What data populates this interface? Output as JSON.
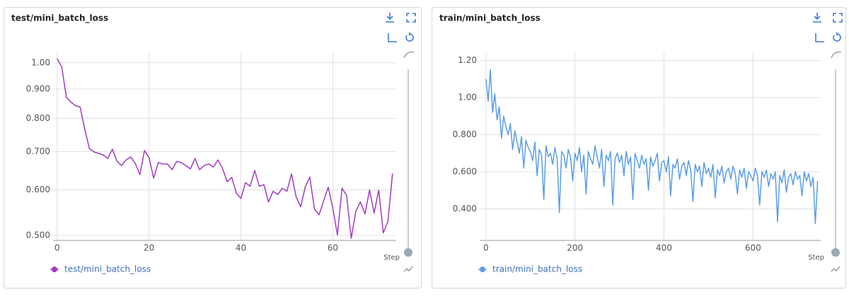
{
  "chart_data": [
    {
      "type": "line",
      "title": "test/mini_batch_loss",
      "x_label": "Step",
      "log_y": true,
      "grid": true,
      "xlim": [
        -0.9,
        73.8
      ],
      "xticks": [
        0,
        20,
        40,
        60
      ],
      "ylim": [
        0.49,
        1.04
      ],
      "yticks": [
        {
          "value": 0.5,
          "label": "0.500"
        },
        {
          "value": 0.6,
          "label": "0.600"
        },
        {
          "value": 0.7,
          "label": "0.700"
        },
        {
          "value": 0.8,
          "label": "0.800"
        },
        {
          "value": 0.9,
          "label": "0.900"
        },
        {
          "value": 1,
          "label": "1.00"
        }
      ],
      "x": [
        0,
        1,
        2,
        3,
        4,
        5,
        6,
        7,
        8,
        9,
        10,
        11,
        12,
        13,
        14,
        15,
        16,
        17,
        18,
        19,
        20,
        21,
        22,
        23,
        24,
        25,
        26,
        27,
        28,
        29,
        30,
        31,
        32,
        33,
        34,
        35,
        36,
        37,
        38,
        39,
        40,
        41,
        42,
        43,
        44,
        45,
        46,
        47,
        48,
        49,
        50,
        51,
        52,
        53,
        54,
        55,
        56,
        57,
        58,
        59,
        60,
        61,
        62,
        63,
        64,
        65,
        66,
        67,
        68,
        69,
        70,
        71,
        72,
        73
      ],
      "series": [
        {
          "name": "test/mini_batch_loss",
          "color": "#a03cc0",
          "values": [
            1.017,
            0.983,
            0.871,
            0.854,
            0.842,
            0.837,
            0.766,
            0.709,
            0.699,
            0.695,
            0.691,
            0.681,
            0.707,
            0.674,
            0.662,
            0.677,
            0.685,
            0.668,
            0.638,
            0.703,
            0.683,
            0.629,
            0.67,
            0.666,
            0.666,
            0.651,
            0.673,
            0.67,
            0.662,
            0.653,
            0.681,
            0.651,
            0.662,
            0.666,
            0.658,
            0.677,
            0.654,
            0.62,
            0.631,
            0.592,
            0.58,
            0.618,
            0.609,
            0.649,
            0.609,
            0.613,
            0.572,
            0.597,
            0.589,
            0.604,
            0.597,
            0.64,
            0.584,
            0.561,
            0.607,
            0.632,
            0.556,
            0.543,
            0.574,
            0.607,
            0.558,
            0.501,
            0.604,
            0.587,
            0.494,
            0.551,
            0.572,
            0.545,
            0.6,
            0.547,
            0.6,
            0.505,
            0.529,
            0.641
          ]
        }
      ]
    },
    {
      "type": "line",
      "title": "train/mini_batch_loss",
      "x_label": "Step",
      "log_y": false,
      "grid": true,
      "xlim": [
        -14,
        752
      ],
      "xticks": [
        0,
        200,
        400,
        600
      ],
      "ylim": [
        0.23,
        1.24
      ],
      "yticks": [
        {
          "value": 0.4,
          "label": "0.400"
        },
        {
          "value": 0.6,
          "label": "0.600"
        },
        {
          "value": 0.8,
          "label": "0.800"
        },
        {
          "value": 1,
          "label": "1.00"
        },
        {
          "value": 1.2,
          "label": "1.20"
        }
      ],
      "x": [
        0,
        5,
        10,
        15,
        20,
        25,
        30,
        35,
        40,
        45,
        50,
        55,
        60,
        65,
        70,
        75,
        80,
        85,
        90,
        95,
        100,
        105,
        110,
        115,
        120,
        125,
        130,
        135,
        140,
        145,
        150,
        155,
        160,
        165,
        170,
        175,
        180,
        185,
        190,
        195,
        200,
        205,
        210,
        215,
        220,
        225,
        230,
        235,
        240,
        245,
        250,
        255,
        260,
        265,
        270,
        275,
        280,
        285,
        290,
        295,
        300,
        305,
        310,
        315,
        320,
        325,
        330,
        335,
        340,
        345,
        350,
        355,
        360,
        365,
        370,
        375,
        380,
        385,
        390,
        395,
        400,
        405,
        410,
        415,
        420,
        425,
        430,
        435,
        440,
        445,
        450,
        455,
        460,
        465,
        470,
        475,
        480,
        485,
        490,
        495,
        500,
        505,
        510,
        515,
        520,
        525,
        530,
        535,
        540,
        545,
        550,
        555,
        560,
        565,
        570,
        575,
        580,
        585,
        590,
        595,
        600,
        605,
        610,
        615,
        620,
        625,
        630,
        635,
        640,
        645,
        650,
        655,
        660,
        665,
        670,
        675,
        680,
        685,
        690,
        695,
        700,
        705,
        710,
        715,
        720,
        725,
        730,
        735,
        740,
        745
      ],
      "series": [
        {
          "name": "train/mini_batch_loss",
          "color": "#5b9ee6",
          "values": [
            1.1,
            0.98,
            1.15,
            0.92,
            1.02,
            0.88,
            0.95,
            0.78,
            0.9,
            0.84,
            0.8,
            0.86,
            0.72,
            0.82,
            0.76,
            0.7,
            0.79,
            0.62,
            0.77,
            0.73,
            0.71,
            0.66,
            0.76,
            0.58,
            0.72,
            0.69,
            0.45,
            0.74,
            0.68,
            0.7,
            0.64,
            0.73,
            0.67,
            0.38,
            0.71,
            0.69,
            0.62,
            0.72,
            0.68,
            0.55,
            0.7,
            0.66,
            0.73,
            0.6,
            0.69,
            0.48,
            0.71,
            0.67,
            0.64,
            0.74,
            0.68,
            0.62,
            0.72,
            0.52,
            0.69,
            0.66,
            0.71,
            0.42,
            0.67,
            0.7,
            0.65,
            0.69,
            0.58,
            0.71,
            0.64,
            0.68,
            0.45,
            0.7,
            0.66,
            0.62,
            0.69,
            0.64,
            0.67,
            0.5,
            0.68,
            0.63,
            0.66,
            0.7,
            0.55,
            0.65,
            0.66,
            0.6,
            0.68,
            0.47,
            0.64,
            0.62,
            0.67,
            0.56,
            0.63,
            0.65,
            0.58,
            0.66,
            0.61,
            0.44,
            0.64,
            0.6,
            0.63,
            0.52,
            0.65,
            0.59,
            0.62,
            0.57,
            0.64,
            0.46,
            0.61,
            0.58,
            0.63,
            0.54,
            0.6,
            0.62,
            0.56,
            0.63,
            0.59,
            0.48,
            0.61,
            0.57,
            0.62,
            0.51,
            0.6,
            0.58,
            0.55,
            0.62,
            0.58,
            0.42,
            0.6,
            0.57,
            0.61,
            0.52,
            0.59,
            0.56,
            0.6,
            0.33,
            0.58,
            0.54,
            0.61,
            0.49,
            0.57,
            0.59,
            0.53,
            0.6,
            0.56,
            0.58,
            0.47,
            0.6,
            0.55,
            0.59,
            0.52,
            0.57,
            0.32,
            0.55
          ]
        }
      ]
    }
  ]
}
